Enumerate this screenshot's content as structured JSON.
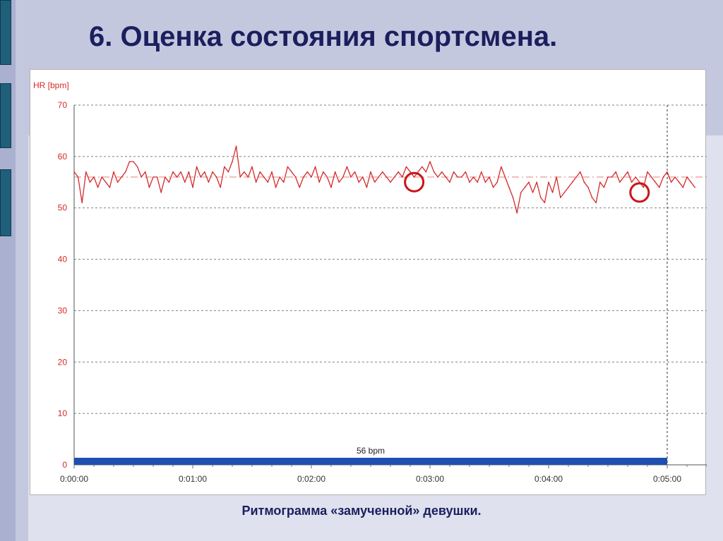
{
  "slide": {
    "title": "6. Оценка состояния спортсмена.",
    "caption": "Ритмограмма «замученной» девушки."
  },
  "colors": {
    "hr_line": "#d42a2a",
    "axis_text_y": "#d42a2a",
    "axis_text_x": "#333333",
    "grid": "#808080",
    "baseline": "#1f4fb0",
    "annotation": "#c8161a",
    "title": "#1b1f5e"
  },
  "chart_data": {
    "type": "line",
    "ylabel": "HR [bpm]",
    "ylim": [
      0,
      70
    ],
    "yticks": [
      0,
      10,
      20,
      30,
      40,
      50,
      60,
      70
    ],
    "y_tick_labels": [
      "0",
      "10",
      "20",
      "30",
      "40",
      "50",
      "60",
      "70"
    ],
    "xlim": [
      "0:00:00",
      "0:05:20"
    ],
    "x_tick_labels": [
      "0:00:00",
      "0:01:00",
      "0:02:00",
      "0:03:00",
      "0:04:00",
      "0:05:00"
    ],
    "x_tick_seconds": [
      0,
      60,
      120,
      180,
      240,
      300
    ],
    "grid": true,
    "reference_line_bpm": 56,
    "marker_line_time": "0:05:00",
    "baseline_bar": {
      "label": "56 bpm",
      "start": "0:00:00",
      "end": "0:05:00"
    },
    "series": [
      {
        "t_seconds": [
          0,
          2,
          4,
          6,
          8,
          10,
          12,
          14,
          16,
          18,
          20,
          22,
          24,
          26,
          28,
          30,
          32,
          34,
          36,
          38,
          40,
          42,
          44,
          46,
          48,
          50,
          52,
          54,
          56,
          58,
          60,
          62,
          64,
          66,
          68,
          70,
          72,
          74,
          76,
          78,
          80,
          82,
          84,
          86,
          88,
          90,
          92,
          94,
          96,
          98,
          100,
          102,
          104,
          106,
          108,
          110,
          112,
          114,
          116,
          118,
          120,
          122,
          124,
          126,
          128,
          130,
          132,
          134,
          136,
          138,
          140,
          142,
          144,
          146,
          148,
          150,
          152,
          154,
          156,
          158,
          160,
          162,
          164,
          166,
          168,
          170,
          172,
          174,
          176,
          178,
          180,
          182,
          184,
          186,
          188,
          190,
          192,
          194,
          196,
          198,
          200,
          202,
          204,
          206,
          208,
          210,
          212,
          214,
          216,
          218,
          220,
          222,
          224,
          226,
          228,
          230,
          232,
          234,
          236,
          238,
          240,
          242,
          244,
          246,
          248,
          250,
          252,
          254,
          256,
          258,
          260,
          262,
          264,
          266,
          268,
          270,
          272,
          274,
          276,
          278,
          280,
          282,
          284,
          286,
          288,
          290,
          292,
          294,
          296,
          298,
          300,
          302,
          304,
          306,
          308,
          310,
          312,
          314
        ],
        "values": [
          57,
          56,
          51,
          57,
          55,
          56,
          54,
          56,
          55,
          54,
          57,
          55,
          56,
          57,
          59,
          59,
          58,
          56,
          57,
          54,
          56,
          56,
          53,
          56,
          55,
          57,
          56,
          57,
          55,
          57,
          54,
          58,
          56,
          57,
          55,
          57,
          56,
          54,
          58,
          57,
          59,
          62,
          56,
          57,
          56,
          58,
          55,
          57,
          56,
          55,
          57,
          54,
          56,
          55,
          58,
          57,
          56,
          54,
          56,
          57,
          56,
          58,
          55,
          57,
          56,
          54,
          57,
          55,
          56,
          58,
          56,
          57,
          55,
          56,
          54,
          57,
          55,
          56,
          57,
          56,
          55,
          56,
          57,
          56,
          58,
          57,
          56,
          57,
          58,
          57,
          59,
          57,
          56,
          57,
          56,
          55,
          57,
          56,
          56,
          57,
          55,
          56,
          55,
          57,
          55,
          56,
          54,
          55,
          58,
          56,
          54,
          52,
          49,
          53,
          54,
          55,
          53,
          55,
          52,
          51,
          55,
          53,
          56,
          52,
          53,
          54,
          55,
          56,
          57,
          55,
          54,
          52,
          51,
          55,
          54,
          56,
          56,
          57,
          55,
          56,
          57,
          55,
          56,
          55,
          54,
          57,
          56,
          55,
          54,
          56,
          57,
          55,
          56,
          55,
          54,
          56,
          55,
          54
        ]
      }
    ],
    "annotations": [
      {
        "t": "0:02:52",
        "hr": 55,
        "shape": "circle"
      },
      {
        "t": "0:04:46",
        "hr": 53,
        "shape": "circle"
      }
    ]
  }
}
